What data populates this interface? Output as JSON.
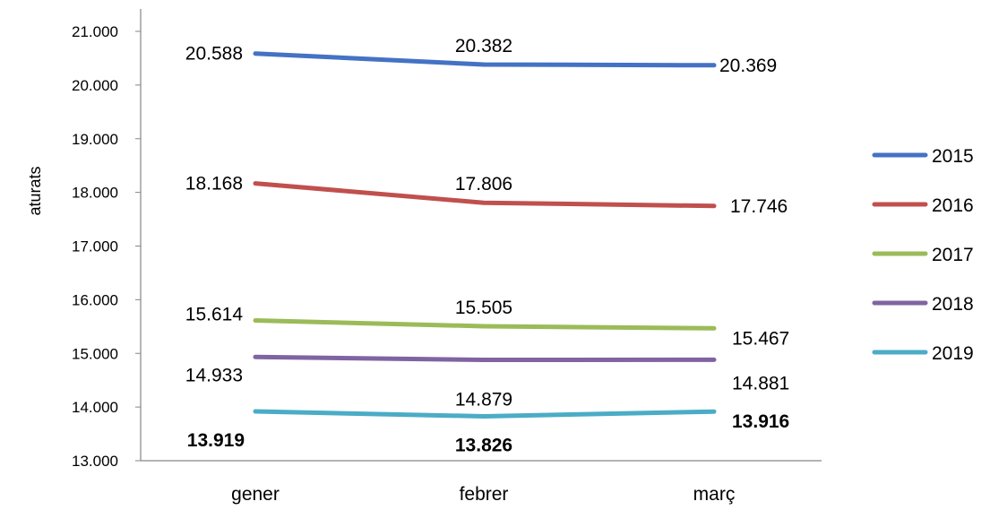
{
  "chart_data": {
    "type": "line",
    "title": "",
    "xlabel": "",
    "ylabel": "aturats",
    "categories": [
      "gener",
      "febrer",
      "març"
    ],
    "ylim": [
      13000,
      21000
    ],
    "yticks": [
      13000,
      14000,
      15000,
      16000,
      17000,
      18000,
      19000,
      20000,
      21000
    ],
    "ytick_labels": [
      "13.000",
      "14.000",
      "15.000",
      "16.000",
      "17.000",
      "18.000",
      "19.000",
      "20.000",
      "21.000"
    ],
    "grid": false,
    "legend_position": "right",
    "series": [
      {
        "name": "2015",
        "color": "#4472C4",
        "values": [
          20588,
          20382,
          20369
        ],
        "labels": [
          "20.588",
          "20.382",
          "20.369"
        ],
        "bold": false
      },
      {
        "name": "2016",
        "color": "#C0504D",
        "values": [
          18168,
          17806,
          17746
        ],
        "labels": [
          "18.168",
          "17.806",
          "17.746"
        ],
        "bold": false
      },
      {
        "name": "2017",
        "color": "#9BBB59",
        "values": [
          15614,
          15505,
          15467
        ],
        "labels": [
          "15.614",
          "15.505",
          "15.467"
        ],
        "bold": false
      },
      {
        "name": "2018",
        "color": "#8064A2",
        "values": [
          14933,
          14879,
          14881
        ],
        "labels": [
          "14.933",
          "14.879",
          "14.881"
        ],
        "bold": false
      },
      {
        "name": "2019",
        "color": "#4BACC6",
        "values": [
          13919,
          13826,
          13916
        ],
        "labels": [
          "13.919",
          "13.826",
          "13.916"
        ],
        "bold": true
      }
    ]
  }
}
